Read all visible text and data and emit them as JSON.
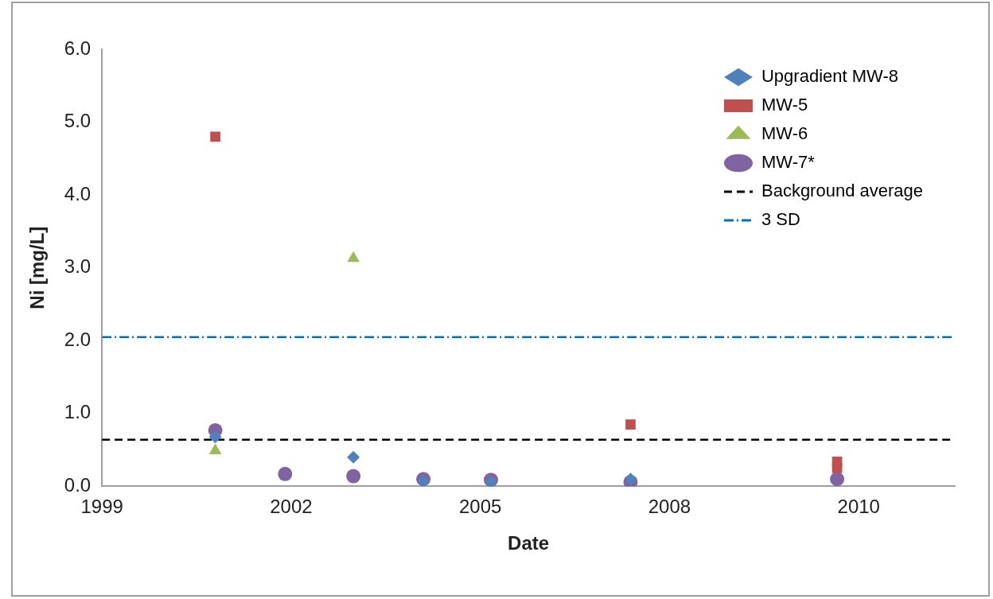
{
  "chart_data": {
    "type": "scatter",
    "xlabel": "Date",
    "ylabel": "Ni [mg/L]",
    "xlim": [
      "1999-12-02",
      "2012-04-05"
    ],
    "xticks": [
      {
        "value": "1999-12-02",
        "label": "1999"
      },
      {
        "value": "2002-08-28",
        "label": "2002"
      },
      {
        "value": "2005-05-24",
        "label": "2005"
      },
      {
        "value": "2008-02-18",
        "label": "2008"
      },
      {
        "value": "2010-11-14",
        "label": "2010"
      }
    ],
    "ylim": [
      0,
      6
    ],
    "yticks": [
      {
        "value": 0,
        "label": "0.0"
      },
      {
        "value": 1,
        "label": "1.0"
      },
      {
        "value": 2,
        "label": "2.0"
      },
      {
        "value": 3,
        "label": "3.0"
      },
      {
        "value": 4,
        "label": "4.0"
      },
      {
        "value": 5,
        "label": "5.0"
      },
      {
        "value": 6,
        "label": "6.0"
      }
    ],
    "grid": false,
    "legend": "top right",
    "series": [
      {
        "name": "Upgradient MW-8",
        "color": "#4f81bd",
        "marker": "diamond",
        "x": [
          "2001-07-23",
          "2003-07-23",
          "2004-07-27",
          "2005-07-19",
          "2007-07-27"
        ],
        "values": [
          0.68,
          0.4,
          0.07,
          0.06,
          0.1
        ]
      },
      {
        "name": "MW-5",
        "color": "#c0504d",
        "marker": "square",
        "x": [
          "2001-07-23",
          "2007-07-27",
          "2010-07-23",
          "2010-07-23"
        ],
        "values": [
          4.8,
          0.85,
          0.34,
          0.25
        ]
      },
      {
        "name": "MW-6",
        "color": "#9bbb59",
        "marker": "triangle",
        "x": [
          "2001-07-23",
          "2003-07-23"
        ],
        "values": [
          0.49,
          3.13
        ]
      },
      {
        "name": "MW-7*",
        "color": "#8064a2",
        "marker": "circle",
        "x": [
          "2001-07-23",
          "2002-07-27",
          "2003-07-23",
          "2004-07-27",
          "2005-07-19",
          "2007-07-27",
          "2010-07-23"
        ],
        "values": [
          0.77,
          0.17,
          0.14,
          0.1,
          0.09,
          0.06,
          0.1
        ]
      }
    ],
    "ref_lines": [
      {
        "axis": "y",
        "value": 0.64,
        "label": "Background average",
        "color": "#000000",
        "line_style": "dashed"
      },
      {
        "axis": "y",
        "value": 2.05,
        "label": "3 SD",
        "color": "#0070c0",
        "line_style": "dashdot"
      }
    ]
  }
}
